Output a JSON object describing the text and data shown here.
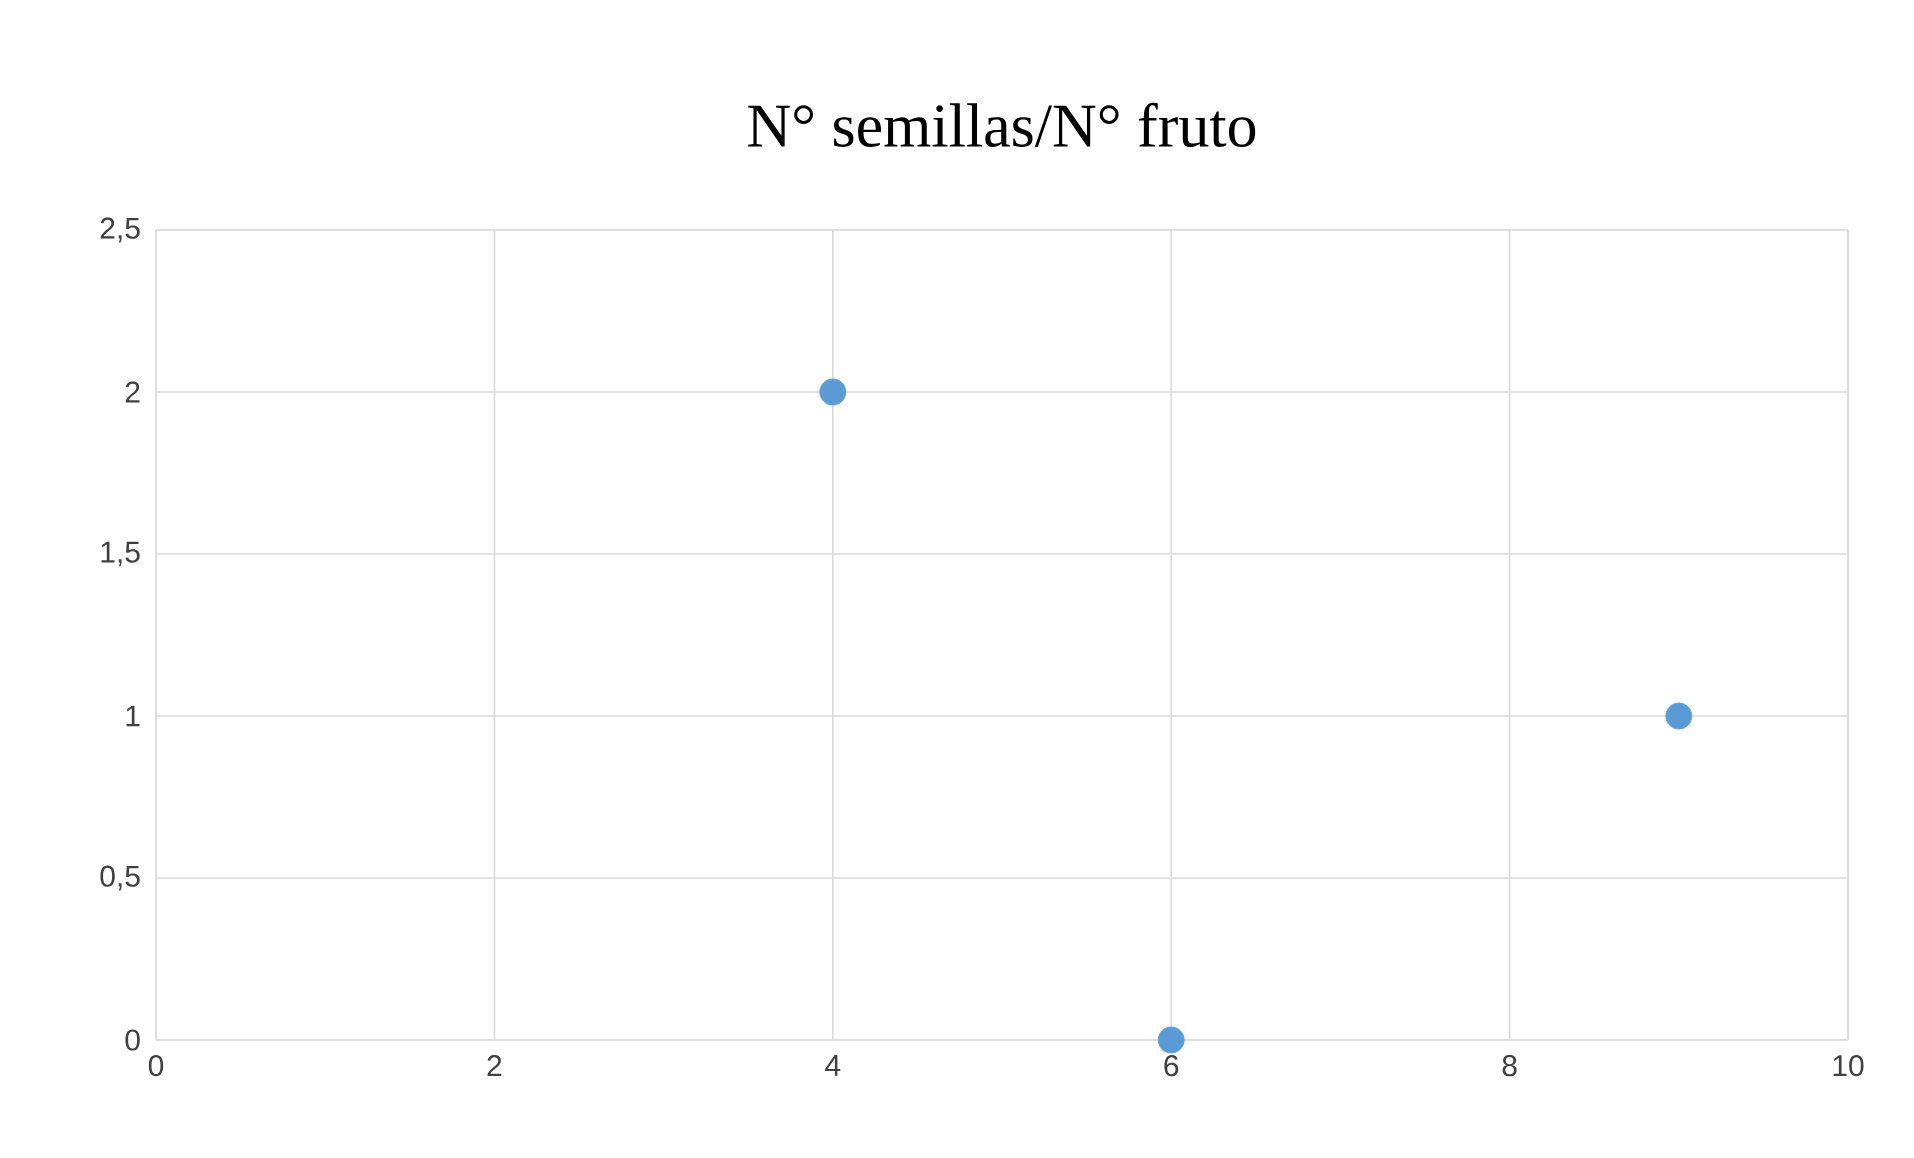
{
  "chart_data": {
    "type": "scatter",
    "title": "N° semillas/N° fruto",
    "x": [
      4,
      6,
      9
    ],
    "values": [
      2,
      0,
      1
    ],
    "color": "#5b9bd5",
    "marker": "circle",
    "xlim": [
      0,
      10
    ],
    "xticks": [
      0,
      2,
      4,
      6,
      8,
      10
    ],
    "ylim": [
      0,
      2.5
    ],
    "yticks": [
      0,
      {
        "value": 0.5,
        "label": "0,5"
      },
      1,
      {
        "value": 1.5,
        "label": "1,5"
      },
      2,
      {
        "value": 2.5,
        "label": "2,5"
      }
    ],
    "grid": true
  }
}
